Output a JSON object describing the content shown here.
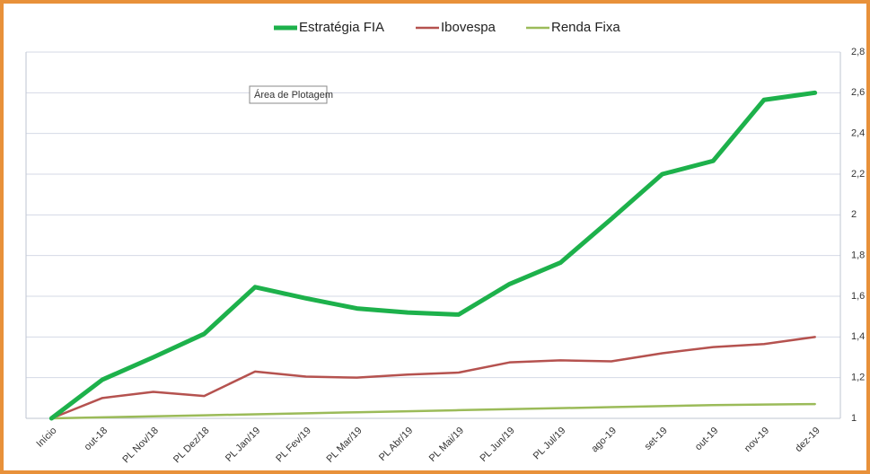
{
  "chart_data": {
    "type": "line",
    "annotation": "Área de Plotagem",
    "categories": [
      "Início",
      "out-18",
      "PL Nov/18",
      "PL Dez/18",
      "PL Jan/19",
      "PL Fev/19",
      "PL Mar/19",
      "PL Abr/19",
      "PL Mai/19",
      "PL Jun/19",
      "PL Jul/19",
      "ago-19",
      "set-19",
      "out-19",
      "nov-19",
      "dez-19"
    ],
    "series": [
      {
        "name": "Estratégia FIA",
        "color": "#1db14b",
        "width": 5,
        "values": [
          1.0,
          1.19,
          1.3,
          1.415,
          1.645,
          1.59,
          1.54,
          1.52,
          1.51,
          1.66,
          1.765,
          1.98,
          2.2,
          2.265,
          2.565,
          2.6
        ]
      },
      {
        "name": "Ibovespa",
        "color": "#b5524f",
        "width": 2.5,
        "values": [
          1.0,
          1.1,
          1.13,
          1.11,
          1.23,
          1.205,
          1.2,
          1.215,
          1.225,
          1.275,
          1.285,
          1.28,
          1.32,
          1.35,
          1.365,
          1.4
        ]
      },
      {
        "name": "Renda Fixa",
        "color": "#9bbb59",
        "width": 2.5,
        "values": [
          1.0,
          1.005,
          1.01,
          1.015,
          1.02,
          1.025,
          1.03,
          1.035,
          1.04,
          1.045,
          1.05,
          1.055,
          1.06,
          1.065,
          1.068,
          1.07
        ]
      }
    ],
    "ylim": [
      1,
      2.8
    ],
    "yticks": [
      1,
      {
        "value": 1.2,
        "label": "1,2"
      },
      {
        "value": 1.4,
        "label": "1,4"
      },
      {
        "value": 1.6,
        "label": "1,6"
      },
      {
        "value": 1.8,
        "label": "1,8"
      },
      2,
      {
        "value": 2.2,
        "label": "2,2"
      },
      {
        "value": 2.4,
        "label": "2,4"
      },
      {
        "value": 2.6,
        "label": "2,6"
      },
      {
        "value": 2.8,
        "label": "2,8"
      }
    ],
    "y_axis_side": "right",
    "grid": true,
    "legend": "top"
  }
}
